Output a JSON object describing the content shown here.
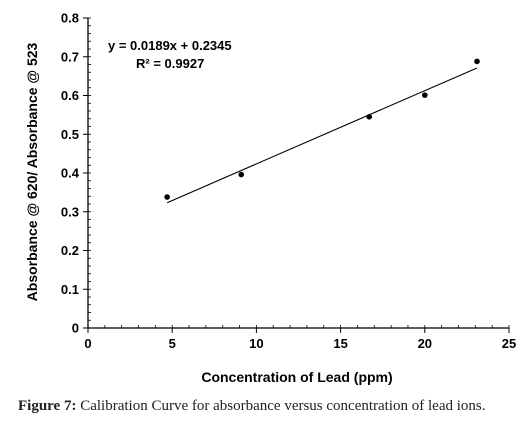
{
  "chart_data": {
    "type": "scatter",
    "xlabel": "Concentration of Lead (ppm)",
    "ylabel": "Absorbance @ 620/ Absorbance @ 523",
    "xlim": [
      0,
      25
    ],
    "ylim": [
      0,
      0.8
    ],
    "x_ticks": [
      "0",
      "5",
      "10",
      "15",
      "20",
      "25"
    ],
    "y_ticks": [
      "0",
      "0.1",
      "0.2",
      "0.3",
      "0.4",
      "0.5",
      "0.6",
      "0.7",
      "0.8"
    ],
    "points": [
      {
        "x": 4.7,
        "y": 0.338
      },
      {
        "x": 9.1,
        "y": 0.396
      },
      {
        "x": 16.7,
        "y": 0.545
      },
      {
        "x": 20.0,
        "y": 0.601
      },
      {
        "x": 23.1,
        "y": 0.688
      }
    ],
    "trendline": {
      "slope": 0.0189,
      "intercept": 0.2345,
      "x_range": [
        4.7,
        23.1
      ]
    },
    "equation": "y = 0.0189x + 0.2345",
    "r_squared": "R² = 0.9927",
    "grid": false,
    "legend": "none",
    "marker_color": "#000000",
    "line_color": "#000000"
  },
  "caption": {
    "label": "Figure 7:",
    "text": "Calibration Curve for absorbance versus concentration of lead ions."
  }
}
